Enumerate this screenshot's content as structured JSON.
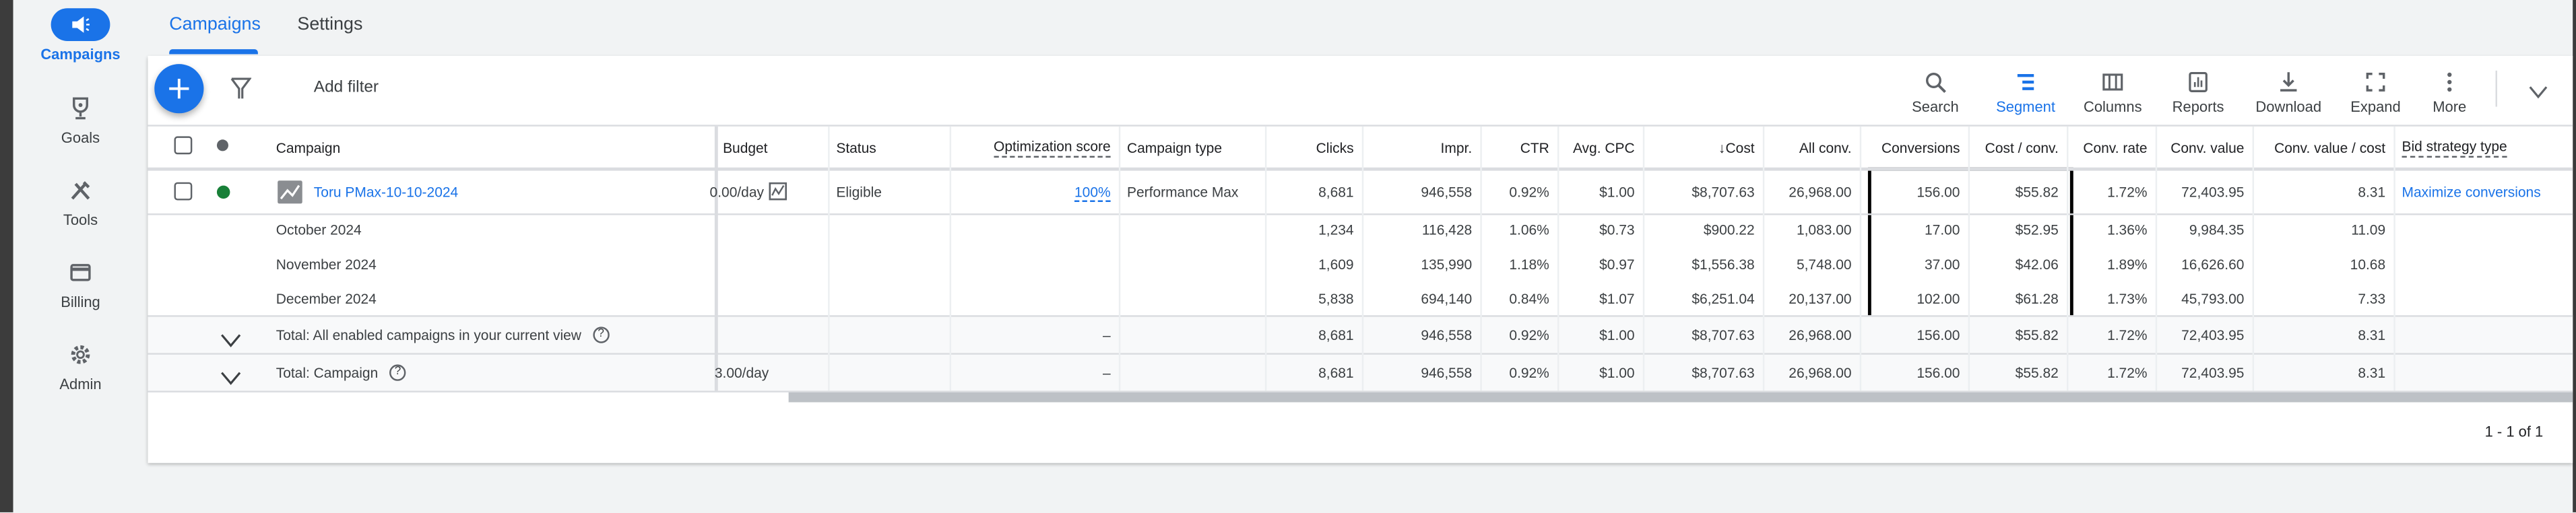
{
  "sidebar": {
    "items": [
      {
        "label": "Campaigns",
        "icon": "megaphone-icon",
        "active": true
      },
      {
        "label": "Goals",
        "icon": "trophy-icon"
      },
      {
        "label": "Tools",
        "icon": "tools-icon"
      },
      {
        "label": "Billing",
        "icon": "credit-card-icon"
      },
      {
        "label": "Admin",
        "icon": "gear-icon"
      }
    ]
  },
  "tabs": [
    {
      "label": "Campaigns",
      "active": true
    },
    {
      "label": "Settings"
    }
  ],
  "toolbar": {
    "add_filter": "Add filter",
    "actions": [
      {
        "label": "Search",
        "icon": "search-icon"
      },
      {
        "label": "Segment",
        "icon": "segment-icon",
        "active": true
      },
      {
        "label": "Columns",
        "icon": "columns-icon"
      },
      {
        "label": "Reports",
        "icon": "reports-icon"
      },
      {
        "label": "Download",
        "icon": "download-icon"
      },
      {
        "label": "Expand",
        "icon": "expand-icon"
      },
      {
        "label": "More",
        "icon": "more-vert-icon"
      }
    ]
  },
  "table": {
    "header_campaign": "Campaign",
    "columns": [
      "Budget",
      "Status",
      "Optimization score",
      "Campaign type",
      "Clicks",
      "Impr.",
      "CTR",
      "Avg. CPC",
      "Cost",
      "All conv.",
      "Conversions",
      "Cost / conv.",
      "Conv. rate",
      "Conv. value",
      "Conv. value / cost",
      "Bid strategy type"
    ],
    "sorted_column": "Cost",
    "rows": [
      {
        "name": "Toru PMax-10-10-2024",
        "type": "campaign",
        "status_color": "#188038",
        "cells": [
          "0.00/day",
          "Eligible",
          "100%",
          "Performance Max",
          "8,681",
          "946,558",
          "0.92%",
          "$1.00",
          "$8,707.63",
          "26,968.00",
          "156.00",
          "$55.82",
          "1.72%",
          "72,403.95",
          "8.31",
          "Maximize conversions"
        ]
      },
      {
        "name": "October 2024",
        "type": "segment",
        "cells": [
          "",
          "",
          "",
          "",
          "1,234",
          "116,428",
          "1.06%",
          "$0.73",
          "$900.22",
          "1,083.00",
          "17.00",
          "$52.95",
          "1.36%",
          "9,984.35",
          "11.09",
          ""
        ]
      },
      {
        "name": "November 2024",
        "type": "segment",
        "cells": [
          "",
          "",
          "",
          "",
          "1,609",
          "135,990",
          "1.18%",
          "$0.97",
          "$1,556.38",
          "5,748.00",
          "37.00",
          "$42.06",
          "1.89%",
          "16,626.60",
          "10.68",
          ""
        ]
      },
      {
        "name": "December 2024",
        "type": "segment",
        "cells": [
          "",
          "",
          "",
          "",
          "5,838",
          "694,140",
          "0.84%",
          "$1.07",
          "$6,251.04",
          "20,137.00",
          "102.00",
          "$61.28",
          "1.73%",
          "45,793.00",
          "7.33",
          ""
        ]
      },
      {
        "name": "Total: All enabled campaigns in your current view",
        "type": "total",
        "cells": [
          "",
          "",
          "–",
          "",
          "8,681",
          "946,558",
          "0.92%",
          "$1.00",
          "$8,707.63",
          "26,968.00",
          "156.00",
          "$55.82",
          "1.72%",
          "72,403.95",
          "8.31",
          ""
        ]
      },
      {
        "name": "Total: Campaign",
        "type": "total",
        "cells": [
          "3.00/day",
          "",
          "–",
          "",
          "8,681",
          "946,558",
          "0.92%",
          "$1.00",
          "$8,707.63",
          "26,968.00",
          "156.00",
          "$55.82",
          "1.72%",
          "72,403.95",
          "8.31",
          ""
        ]
      }
    ]
  },
  "pagination": "1 - 1 of 1",
  "colors": {
    "accent": "#1a73e8",
    "status_enabled": "#188038",
    "highlight_box": "#000000"
  }
}
